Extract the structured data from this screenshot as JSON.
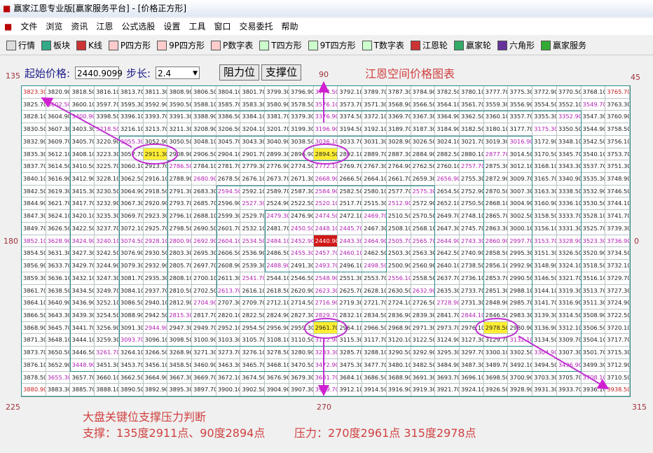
{
  "window": {
    "title": "赢家江恩专业版[赢家服务平台] - [价格正方形]"
  },
  "menu": [
    "文件",
    "浏览",
    "资讯",
    "江恩",
    "公式选股",
    "设置",
    "工具",
    "窗口",
    "交易委托",
    "帮助"
  ],
  "toolbar": [
    "行情",
    "板块",
    "K线",
    "P四方形",
    "9P四方形",
    "P数字表",
    "T四方形",
    "9T四方形",
    "T数字表",
    "江恩轮",
    "赢家轮",
    "六角形",
    "赢家服务"
  ],
  "controls": {
    "start_label": "起始价格:",
    "start_value": "2440.9099",
    "step_label": "步长:",
    "step_value": "2.4",
    "buttons": [
      "阻力位",
      "支撑位"
    ]
  },
  "chart": {
    "title": "江恩空间价格图表",
    "angle_labels": [
      "135",
      "90",
      "45",
      "180",
      "0",
      "225",
      "270",
      "315"
    ]
  },
  "grid": {
    "spiral_values": [
      "2440.90",
      "2443.30",
      "2445.70",
      "2448.10",
      "2450.50",
      "2452.90",
      "2455.30",
      "2457.70",
      "2460.10",
      "2462.50",
      "2464.90",
      "2467.30",
      "2469.70",
      "2472.10",
      "2474.50",
      "2476.90",
      "2479.30",
      "2481.70",
      "2484.10",
      "2486.50",
      "2488.90",
      "2491.30",
      "2493.70",
      "2496.10",
      "2498.50",
      "2500.90",
      "2503.30",
      "2505.70",
      "2508.10",
      "2510.50",
      "2512.90",
      "2515.30",
      "2517.70",
      "2520.10",
      "2522.50",
      "2524.90",
      "2527.30",
      "2529.70",
      "2532.10",
      "2534.50",
      "2536.90",
      "2539.30",
      "2541.70",
      "2544.10",
      "2546.50",
      "2548.90",
      "2551.30",
      "2553.70",
      "2556.10",
      "2558.50",
      "2560.90",
      "2563.30",
      "2565.70",
      "2568.10",
      "2570.50",
      "2572.90",
      "2575.30",
      "2577.70",
      "2580.10",
      "2582.50",
      "2584.90",
      "2587.30",
      "2589.70",
      "2592.10",
      "2594.50",
      "2596.90",
      "2599.30",
      "2601.70",
      "2604.10",
      "2606.50",
      "2608.90",
      "2611.30",
      "2613.70",
      "2616.10",
      "2618.50",
      "2620.90",
      "2623.30",
      "2625.70",
      "2628.10",
      "2630.50",
      "2632.90",
      "2635.30",
      "2637.70",
      "2640.10",
      "2642.50",
      "2644.90",
      "2647.30",
      "2649.70",
      "2652.10",
      "2654.50",
      "2656.90",
      "2659.30",
      "2661.70",
      "2664.10",
      "2666.50",
      "2668.90",
      "2671.30",
      "2673.70",
      "2676.10",
      "2678.50",
      "2680.90",
      "2683.30",
      "2685.70",
      "2688.10",
      "2690.50",
      "2692.90",
      "2695.30",
      "2697.70",
      "2700.10",
      "2702.50",
      "2704.90",
      "2707.30",
      "2709.70",
      "2712.10",
      "2714.50",
      "2716.90",
      "2719.30",
      "2721.70",
      "2724.10",
      "2726.50",
      "2728.90",
      "2731.30",
      "2733.70",
      "2736.10",
      "2738.50",
      "2740.90",
      "2743.30",
      "2745.70",
      "2748.10",
      "2750.50",
      "2752.90",
      "2755.30",
      "2757.70",
      "2760.10",
      "2762.50",
      "2764.90",
      "2767.30",
      "2769.70",
      "2772.10",
      "2774.50",
      "2776.90",
      "2779.30",
      "2781.70",
      "2784.10",
      "2786.50",
      "2788.90",
      "2791.30",
      "2793.70",
      "2796.10",
      "2798.50",
      "2800.90",
      "2803.30",
      "2805.70",
      "2808.10",
      "2810.50",
      "2812.90",
      "2815.30",
      "2817.70",
      "2820.10",
      "2822.50",
      "2824.90",
      "2827.30",
      "2829.70",
      "2832.10",
      "2834.50",
      "2836.90",
      "2839.30",
      "2841.70",
      "2844.10",
      "2846.50",
      "2848.90",
      "2851.30",
      "2853.70",
      "2856.10",
      "2858.50",
      "2860.90",
      "2863.30",
      "2865.70",
      "2868.10",
      "2870.50",
      "2872.90",
      "2875.30",
      "2877.70",
      "2880.10",
      "2882.50",
      "2884.90",
      "2887.30",
      "2889.70",
      "2892.10",
      "2894.50",
      "2896.90",
      "2899.30",
      "2901.70",
      "2904.10",
      "2906.50",
      "2908.90",
      "2911.30",
      "2913.70",
      "2916.10",
      "2918.50",
      "2920.90",
      "2923.30",
      "2925.70",
      "2928.10",
      "2930.50",
      "2932.90",
      "2935.30",
      "2937.70",
      "2940.10",
      "2942.50",
      "2944.90",
      "2947.30",
      "2949.70",
      "2952.10",
      "2954.50",
      "2956.90",
      "2959.30",
      "2961.70",
      "2964.10",
      "2966.50",
      "2968.90",
      "2971.30",
      "2973.70",
      "2976.10",
      "2978.50",
      "2980.90",
      "2983.30",
      "2985.70",
      "2988.10",
      "2990.50",
      "2992.90",
      "2995.30",
      "2997.70",
      "3000.10",
      "3002.50",
      "3004.90",
      "3007.30",
      "3009.70",
      "3012.10",
      "3014.50",
      "3016.90",
      "3019.30",
      "3021.70",
      "3024.10",
      "3026.50",
      "3028.90",
      "3031.30",
      "3033.70",
      "3036.10",
      "3038.50",
      "3040.90",
      "3043.30",
      "3045.70",
      "3048.10",
      "3050.50",
      "3052.90",
      "3055.30",
      "3057.70",
      "3060.10",
      "3062.50",
      "3064.90",
      "3067.30",
      "3069.70",
      "3072.10",
      "3074.50",
      "3076.90",
      "3079.30",
      "3081.70",
      "3084.10",
      "3086.50",
      "3088.90",
      "3091.30",
      "3093.70",
      "3096.10",
      "3098.50",
      "3100.90",
      "3103.30",
      "3105.70",
      "3108.10",
      "3110.50",
      "3112.90",
      "3115.30",
      "3117.70",
      "3120.10",
      "3122.50",
      "3124.90",
      "3127.30",
      "3129.70",
      "3132.10",
      "3134.50",
      "3136.90",
      "3139.30",
      "3141.70",
      "3144.10",
      "3146.50",
      "3148.90",
      "3151.30",
      "3153.70",
      "3156.10",
      "3158.50",
      "3160.90",
      "3163.30",
      "3165.70",
      "3168.10",
      "3170.50",
      "3172.90",
      "3175.30",
      "3177.70",
      "3180.10",
      "3182.50",
      "3184.90",
      "3187.30",
      "3189.70",
      "3192.10",
      "3194.50",
      "3196.90",
      "3199.30",
      "3201.70",
      "3204.10",
      "3206.50",
      "3208.90",
      "3211.30",
      "3213.70",
      "3216.10",
      "3218.50",
      "3220.90",
      "3223.30",
      "3225.70",
      "3228.10",
      "3230.50",
      "3232.90",
      "3235.30",
      "3237.70",
      "3240.10",
      "3242.50",
      "3244.90",
      "3247.30",
      "3249.70",
      "3252.10",
      "3254.50",
      "3256.90",
      "3259.30",
      "3261.70",
      "3264.10",
      "3266.50",
      "3268.90",
      "3271.30",
      "3273.70",
      "3276.10",
      "3278.50",
      "3280.90",
      "3283.30",
      "3285.70",
      "3288.10",
      "3290.50",
      "3292.90",
      "3295.30",
      "3297.70",
      "3300.10",
      "3302.50",
      "3304.90",
      "3307.30",
      "3309.70",
      "3312.10",
      "3314.50",
      "3316.90",
      "3319.30",
      "3321.70",
      "3324.10",
      "3326.50",
      "3328.90",
      "3331.30",
      "3333.70",
      "3336.10",
      "3338.50",
      "3340.90",
      "3343.30",
      "3345.70",
      "3348.10",
      "3350.50",
      "3352.90",
      "3355.30",
      "3357.70",
      "3360.10",
      "3362.50",
      "3364.90",
      "3367.30",
      "3369.70",
      "3372.10",
      "3374.50",
      "3376.90",
      "3379.30",
      "3381.70",
      "3384.10",
      "3386.50",
      "3388.90",
      "3391.30",
      "3393.70",
      "3396.10",
      "3398.50",
      "3400.90",
      "3403.30",
      "3405.70",
      "3408.10",
      "3410.50",
      "3412.90",
      "3415.30",
      "3417.70",
      "3420.10",
      "3422.50",
      "3424.90",
      "3427.30",
      "3429.70",
      "3432.10",
      "3434.50",
      "3436.90",
      "3439.30",
      "3441.70",
      "3444.10",
      "3446.50",
      "3448.90",
      "3451.30",
      "3453.70",
      "3456.10",
      "3458.50",
      "3460.90",
      "3463.30",
      "3465.70",
      "3468.10",
      "3470.50",
      "3472.90",
      "3475.30",
      "3477.70",
      "3480.10",
      "3482.50",
      "3484.90",
      "3487.30",
      "3489.70",
      "3492.10",
      "3494.50",
      "3496.90",
      "3499.30",
      "3501.70",
      "3504.10",
      "3506.50",
      "3508.90",
      "3511.30",
      "3513.70",
      "3516.10",
      "3518.50",
      "3520.90",
      "3523.30",
      "3525.70",
      "3528.10",
      "3530.50",
      "3532.90",
      "3535.30",
      "3537.70",
      "3540.10",
      "3542.50",
      "3544.90",
      "3547.30",
      "3549.70",
      "3552.10",
      "3554.50",
      "3556.90",
      "3559.30",
      "3561.70",
      "3564.10",
      "3566.50",
      "3568.90",
      "3571.30",
      "3573.70",
      "3576.10",
      "3578.50",
      "3580.90",
      "3583.30",
      "3585.70",
      "3588.10",
      "3590.50",
      "3592.90",
      "3595.30",
      "3597.70",
      "3600.10",
      "3602.50",
      "3604.90",
      "3607.30",
      "3609.70",
      "3612.10",
      "3614.50",
      "3616.90",
      "3619.30",
      "3621.70",
      "3624.10",
      "3626.50",
      "3628.90",
      "3631.30",
      "3633.70",
      "3636.10",
      "3638.50",
      "3640.90",
      "3643.30",
      "3645.70",
      "3648.10",
      "3650.50",
      "3652.90",
      "3655.30",
      "3657.70",
      "3660.10",
      "3662.50",
      "3664.90",
      "3667.30",
      "3669.70",
      "3672.10",
      "3674.50",
      "3676.90",
      "3679.30",
      "3681.70",
      "3684.10",
      "3686.50",
      "3688.90",
      "3691.30",
      "3693.70",
      "3696.10",
      "3698.50",
      "3700.90",
      "3703.30",
      "3705.70",
      "3708.10",
      "3710.50",
      "3712.90",
      "3715.30",
      "3717.70",
      "3720.10",
      "3722.50",
      "3724.90",
      "3727.30",
      "3729.70",
      "3732.10",
      "3734.50",
      "3736.90",
      "3739.30",
      "3741.70",
      "3744.10",
      "3746.50",
      "3748.90",
      "3751.30",
      "3753.70",
      "3756.10",
      "3758.50",
      "3760.90",
      "3763.30",
      "3765.70",
      "3768.10",
      "3770.50",
      "3772.90",
      "3775.30",
      "3777.70",
      "3780.10",
      "3782.50",
      "3784.90",
      "3787.30",
      "3789.70",
      "3792.10",
      "3794.50",
      "3796.90",
      "3799.30",
      "3801.70",
      "3804.10",
      "3806.50",
      "3808.90",
      "3811.30",
      "3813.70",
      "3816.10",
      "3818.50",
      "3820.90",
      "3823.30",
      "3825.70",
      "3828.10",
      "3830.50",
      "3832.90",
      "3835.30",
      "3837.70",
      "3840.10",
      "3842.50",
      "3844.90",
      "3847.30",
      "3849.70",
      "3852.10",
      "3854.50",
      "3856.90",
      "3859.30",
      "3861.70",
      "3864.10",
      "3866.50",
      "3868.90",
      "3871.30",
      "3873.70",
      "3876.10",
      "3878.50",
      "3880.90",
      "3883.30",
      "3885.70",
      "3888.10",
      "3890.50",
      "3892.90",
      "3895.30",
      "3897.70",
      "3900.10",
      "3902.50",
      "3904.90",
      "3907.30",
      "3909.70",
      "3912.10",
      "3914.50",
      "3916.90",
      "3919.30",
      "3921.70",
      "3924.10",
      "3926.50",
      "3928.90",
      "3931.30",
      "3933.70",
      "3936.10",
      "3938.50"
    ]
  },
  "notes": {
    "heading": "大盘关键位支撑压力判断",
    "support": "支撑：135度2911点、90度2894点",
    "resistance": "压力：270度2961点 315度2978点"
  }
}
